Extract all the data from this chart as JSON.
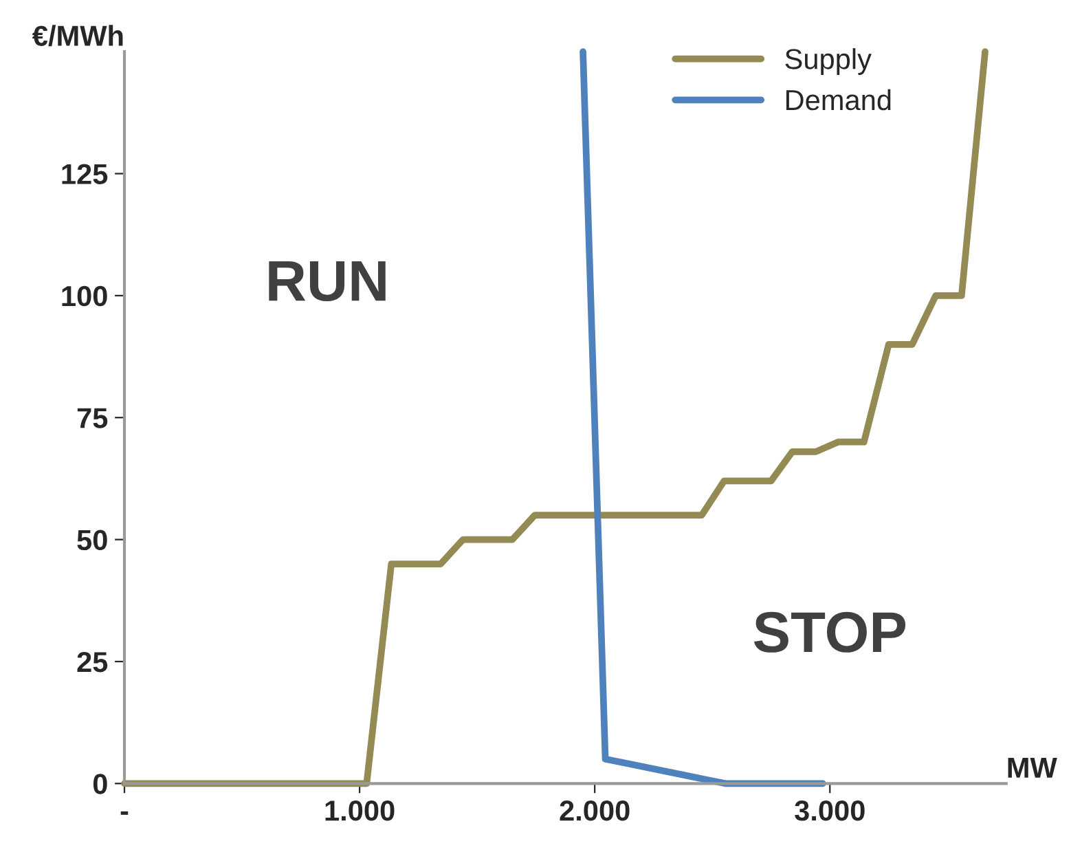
{
  "chart_data": {
    "type": "line",
    "ylabel": "€/MWh",
    "xlabel": "MW",
    "xlim": [
      0,
      3750
    ],
    "ylim": [
      0,
      150
    ],
    "xticks": [
      {
        "value": 0,
        "label": "-"
      },
      {
        "value": 1000,
        "label": "1.000"
      },
      {
        "value": 2000,
        "label": "2.000"
      },
      {
        "value": 3000,
        "label": "3.000"
      }
    ],
    "yticks": [
      0,
      25,
      50,
      75,
      100,
      125
    ],
    "grid": false,
    "legend": "top right",
    "marker": "none",
    "line_style": "solid",
    "annotations": [
      "RUN",
      "STOP"
    ],
    "series": [
      {
        "name": "Supply",
        "color": "#948a54",
        "x": [
          0,
          1030,
          1135,
          1345,
          1440,
          1650,
          1745,
          2455,
          2550,
          2750,
          2840,
          2940,
          3035,
          3145,
          3250,
          3350,
          3450,
          3560,
          3660
        ],
        "values": [
          0,
          0,
          45,
          45,
          50,
          50,
          55,
          55,
          62,
          62,
          68,
          68,
          70,
          70,
          90,
          90,
          100,
          100,
          150
        ]
      },
      {
        "name": "Demand",
        "color": "#4f81bd",
        "x": [
          1950,
          2045,
          2150,
          2250,
          2555,
          2970
        ],
        "values": [
          150,
          5,
          4,
          3,
          0,
          0
        ]
      }
    ]
  }
}
